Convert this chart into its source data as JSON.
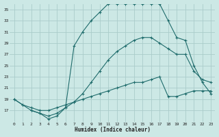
{
  "xlabel": "Humidex (Indice chaleur)",
  "background_color": "#cce8e5",
  "grid_color": "#aaccca",
  "line_color": "#1e6b6b",
  "xlim": [
    -0.5,
    23.5
  ],
  "ylim": [
    15,
    36
  ],
  "yticks": [
    17,
    19,
    21,
    23,
    25,
    27,
    29,
    31,
    33,
    35
  ],
  "xticks": [
    0,
    1,
    2,
    3,
    4,
    5,
    6,
    7,
    8,
    9,
    10,
    11,
    12,
    13,
    14,
    15,
    16,
    17,
    18,
    19,
    20,
    21,
    22,
    23
  ],
  "series": [
    {
      "x": [
        0,
        1,
        2,
        3,
        4,
        5,
        6,
        7,
        8,
        9,
        10,
        11,
        12,
        13,
        14,
        15,
        16,
        17,
        18,
        19,
        20,
        21,
        22,
        23
      ],
      "y": [
        19,
        18,
        17.5,
        17,
        17,
        17.5,
        18,
        18.5,
        19,
        19.5,
        20,
        20.5,
        21,
        21.5,
        22,
        22,
        22.5,
        23,
        19.5,
        19.5,
        20,
        20.5,
        20.5,
        20.5
      ]
    },
    {
      "x": [
        0,
        1,
        2,
        3,
        4,
        5,
        6,
        7,
        8,
        9,
        10,
        11,
        12,
        13,
        14,
        15,
        16,
        17,
        18,
        19,
        20,
        21,
        22,
        23
      ],
      "y": [
        19,
        18,
        17,
        16.5,
        16,
        16.5,
        17.5,
        18.5,
        20,
        22,
        24,
        26,
        27.5,
        28.5,
        29.5,
        30,
        30,
        29,
        28,
        27,
        27,
        24,
        22.5,
        22
      ]
    },
    {
      "x": [
        2,
        3,
        4,
        5,
        6,
        7,
        8,
        9,
        10,
        11,
        12,
        13,
        14,
        15,
        16,
        17,
        18,
        19,
        20,
        21,
        22,
        23
      ],
      "y": [
        17,
        16.5,
        15.5,
        16,
        17.5,
        28.5,
        31,
        33,
        34.5,
        36,
        36,
        36,
        36,
        36,
        36,
        36,
        33,
        30,
        29.5,
        25,
        22,
        20
      ]
    }
  ]
}
